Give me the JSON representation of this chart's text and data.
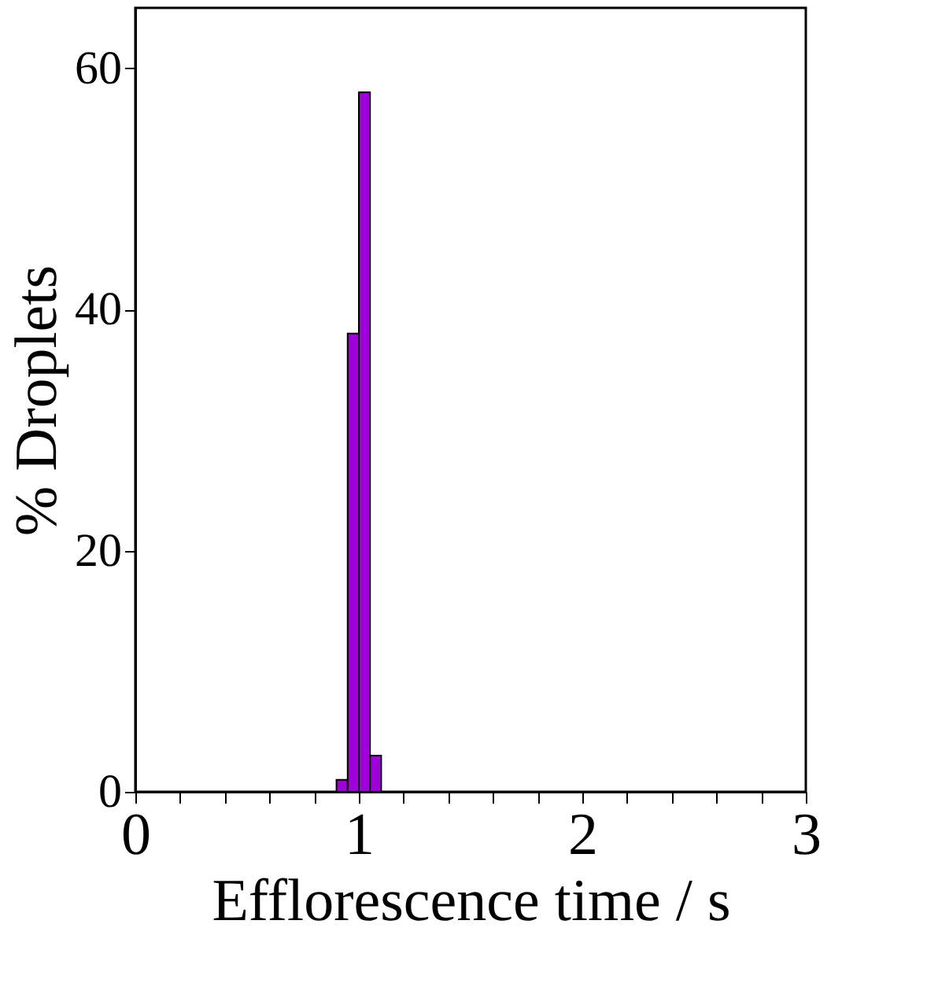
{
  "chart_data": {
    "type": "histogram",
    "xlabel": "Efflorescence time / s",
    "ylabel": "% Droplets",
    "bins": [
      0.9,
      0.95,
      1.0,
      1.05,
      1.1
    ],
    "values": [
      1,
      38,
      58,
      3
    ],
    "color": "#a000d8",
    "xlim": [
      0,
      3
    ],
    "ylim": [
      0,
      65
    ],
    "xticks": [
      0,
      {
        "value": 0.2,
        "label": null
      },
      {
        "value": 0.4,
        "label": null
      },
      {
        "value": 0.6,
        "label": null
      },
      {
        "value": 0.8,
        "label": null
      },
      1,
      {
        "value": 1.2,
        "label": null
      },
      {
        "value": 1.4,
        "label": null
      },
      {
        "value": 1.6,
        "label": null
      },
      {
        "value": 1.8,
        "label": null
      },
      2,
      {
        "value": 2.2,
        "label": null
      },
      {
        "value": 2.4,
        "label": null
      },
      {
        "value": 2.6,
        "label": null
      },
      {
        "value": 2.8,
        "label": null
      },
      3
    ],
    "yticks": [
      0,
      20,
      40,
      60
    ],
    "grid": false
  }
}
